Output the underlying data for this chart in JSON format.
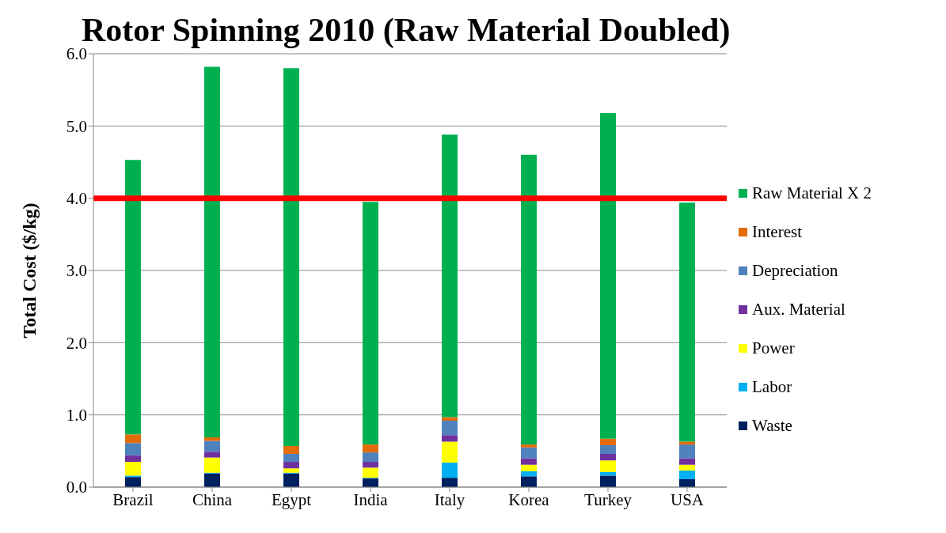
{
  "chart_data": {
    "type": "bar",
    "title": "Rotor Spinning 2010 (Raw Material Doubled)",
    "ylabel": "Total Cost ($/kg)",
    "stacked": true,
    "grid": "y",
    "legend": "right",
    "categories": [
      "Brazil",
      "China",
      "Egypt",
      "India",
      "Italy",
      "Korea",
      "Turkey",
      "USA"
    ],
    "ylim": [
      0,
      6
    ],
    "yticks": [
      {
        "value": 0,
        "label": "0.0"
      },
      {
        "value": 1,
        "label": "1.0"
      },
      {
        "value": 2,
        "label": "2.0"
      },
      {
        "value": 3,
        "label": "3.0"
      },
      {
        "value": 4,
        "label": "4.0"
      },
      {
        "value": 5,
        "label": "5.0"
      },
      {
        "value": 6,
        "label": "6.0"
      }
    ],
    "ref_lines": [
      {
        "axis": "y",
        "value": 4,
        "color": "#ff0000"
      }
    ],
    "series": [
      {
        "name": "Waste",
        "color": "#002060",
        "values": [
          0.14,
          0.19,
          0.19,
          0.12,
          0.13,
          0.15,
          0.16,
          0.11
        ]
      },
      {
        "name": "Labor",
        "color": "#00b0f0",
        "values": [
          0.02,
          0.01,
          0.01,
          0.01,
          0.21,
          0.07,
          0.05,
          0.12
        ]
      },
      {
        "name": "Power",
        "color": "#ffff00",
        "values": [
          0.19,
          0.21,
          0.06,
          0.14,
          0.29,
          0.09,
          0.16,
          0.08
        ]
      },
      {
        "name": "Aux. Material",
        "color": "#7030a0",
        "values": [
          0.09,
          0.08,
          0.09,
          0.08,
          0.09,
          0.09,
          0.09,
          0.09
        ]
      },
      {
        "name": "Depreciation",
        "color": "#4f81bd",
        "values": [
          0.17,
          0.15,
          0.11,
          0.13,
          0.2,
          0.15,
          0.12,
          0.19
        ]
      },
      {
        "name": "Interest",
        "color": "#e36c09",
        "values": [
          0.12,
          0.05,
          0.11,
          0.11,
          0.05,
          0.04,
          0.09,
          0.04
        ]
      },
      {
        "name": "Raw Material X 2",
        "color": "#00b050",
        "values": [
          3.8,
          5.13,
          5.23,
          3.36,
          3.91,
          4.01,
          4.51,
          3.31
        ]
      }
    ]
  }
}
